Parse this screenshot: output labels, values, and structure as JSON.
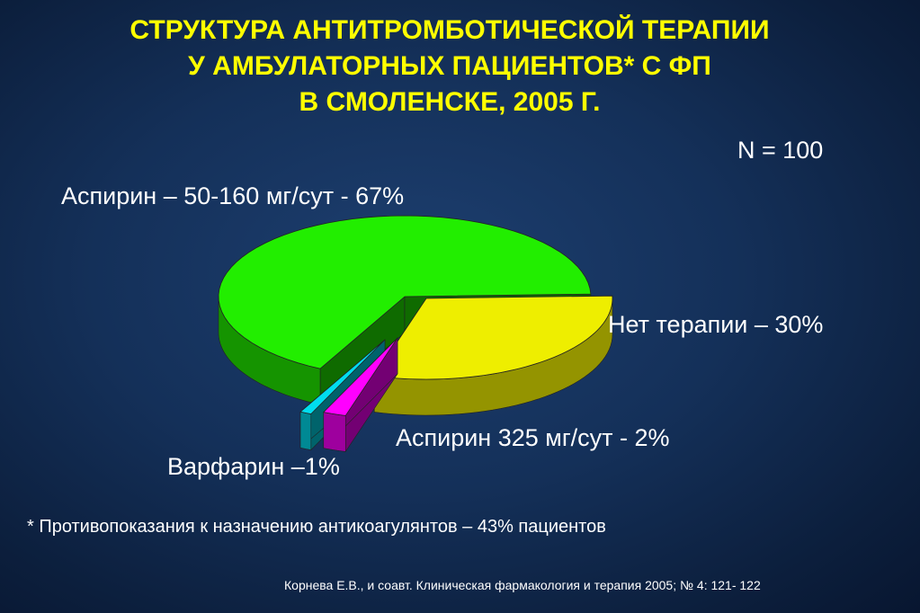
{
  "title": {
    "line1": "СТРУКТУРА АНТИТРОМБОТИЧЕСКОЙ ТЕРАПИИ",
    "line2": "У АМБУЛАТОРНЫХ  ПАЦИЕНТОВ* С ФП",
    "line3": "В СМОЛЕНСКЕ, 2005 Г."
  },
  "n_label": "N = 100",
  "footnote": "* Противопоказания к назначению антикоагулянтов – 43% пациентов",
  "citation": "Корнева Е.В., и соавт. Клиническая фармакология и терапия  2005; № 4: 121- 122",
  "chart_data": {
    "type": "pie",
    "title": "СТРУКТУРА АНТИТРОМБОТИЧЕСКОЙ ТЕРАПИИ У АМБУЛАТОРНЫХ ПАЦИЕНТОВ* С ФП В СМОЛЕНСКЕ, 2005 Г.",
    "slices": [
      {
        "label": "Аспирин – 50-160 мг/сут  -  67%",
        "value": 67,
        "color": "#22ee00",
        "exploded": false
      },
      {
        "label": "Нет терапии – 30%",
        "value": 30,
        "color": "#eeee00",
        "exploded": true
      },
      {
        "label": "Аспирин 325 мг/сут - 2%",
        "value": 2,
        "color": "#ff00ff",
        "exploded": true
      },
      {
        "label": "Варфарин –1%",
        "value": 1,
        "color": "#00ddee",
        "exploded": true
      }
    ]
  },
  "colors": {
    "title": "#ffff00",
    "text": "#ffffff",
    "background": "#143059"
  }
}
